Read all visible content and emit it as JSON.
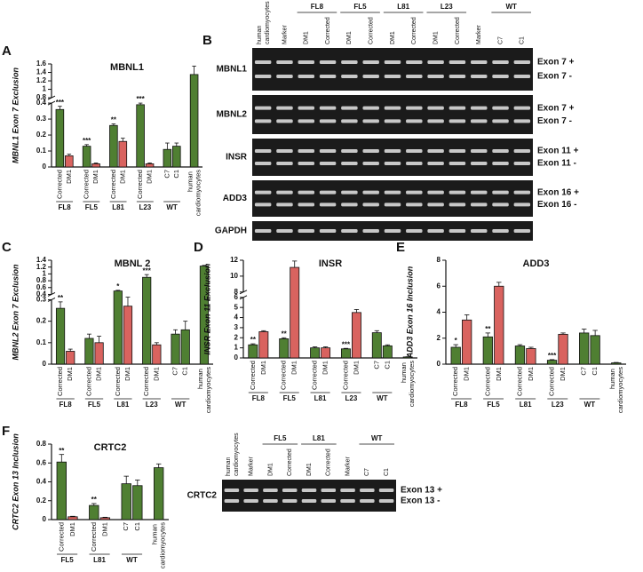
{
  "chart_data": [
    {
      "type": "bar",
      "panel": "A",
      "title": "MBNL1",
      "y_label": "MBNL1 Exon 7 Exclusion",
      "ylim": [
        0,
        1.6
      ],
      "ybreak": [
        0.4,
        0.8
      ],
      "yticks": [
        0,
        0.1,
        0.2,
        0.3,
        0.4,
        0.8,
        1,
        1.2,
        1.4,
        1.6
      ],
      "groups": [
        {
          "label": "FL8",
          "categories": [
            "Corrected",
            "DM1"
          ],
          "colors": [
            "#4f7f32",
            "#d9635f"
          ],
          "values": [
            0.36,
            0.07
          ],
          "errors": [
            0.02,
            0.01
          ],
          "stars": [
            "***",
            null
          ]
        },
        {
          "label": "FL5",
          "categories": [
            "Corrected",
            "DM1"
          ],
          "colors": [
            "#4f7f32",
            "#d9635f"
          ],
          "values": [
            0.13,
            0.02
          ],
          "errors": [
            0.01,
            0.005
          ],
          "stars": [
            "***",
            null
          ]
        },
        {
          "label": "L81",
          "categories": [
            "Corrected",
            "DM1"
          ],
          "colors": [
            "#4f7f32",
            "#d9635f"
          ],
          "values": [
            0.26,
            0.16
          ],
          "errors": [
            0.01,
            0.02
          ],
          "stars": [
            "**",
            null
          ]
        },
        {
          "label": "L23",
          "categories": [
            "Corrected",
            "DM1"
          ],
          "colors": [
            "#4f7f32",
            "#d9635f"
          ],
          "values": [
            0.39,
            0.02
          ],
          "errors": [
            0.01,
            0.005
          ],
          "stars": [
            "***",
            null
          ]
        },
        {
          "label": "WT",
          "categories": [
            "C7",
            "C1"
          ],
          "colors": [
            "#4f7f32",
            "#4f7f32"
          ],
          "values": [
            0.11,
            0.13
          ],
          "errors": [
            0.04,
            0.02
          ],
          "stars": [
            null,
            null
          ]
        },
        {
          "label": null,
          "categories": [
            "human cardiomyocytes"
          ],
          "colors": [
            "#4f7f32"
          ],
          "values": [
            1.35
          ],
          "errors": [
            0.2
          ],
          "stars": [
            null
          ]
        }
      ]
    },
    {
      "type": "bar",
      "panel": "C",
      "title": "MBNL 2",
      "y_label": "MBNL2 Exon 7 Exclusion",
      "ylim": [
        0,
        1.4
      ],
      "ybreak": [
        0.3,
        0.4
      ],
      "yticks": [
        0,
        0.1,
        0.2,
        0.3,
        0.4,
        0.6,
        0.8,
        1,
        1.2,
        1.4
      ],
      "groups": [
        {
          "label": "FL8",
          "categories": [
            "Corrected",
            "DM1"
          ],
          "colors": [
            "#4f7f32",
            "#d9635f"
          ],
          "values": [
            0.26,
            0.06
          ],
          "errors": [
            0.03,
            0.01
          ],
          "stars": [
            "**",
            null
          ]
        },
        {
          "label": "FL5",
          "categories": [
            "Corrected",
            "DM1"
          ],
          "colors": [
            "#4f7f32",
            "#d9635f"
          ],
          "values": [
            0.12,
            0.1
          ],
          "errors": [
            0.02,
            0.03
          ],
          "stars": [
            null,
            null
          ]
        },
        {
          "label": "L81",
          "categories": [
            "Corrected",
            "DM1"
          ],
          "colors": [
            "#4f7f32",
            "#d9635f"
          ],
          "values": [
            0.5,
            0.27
          ],
          "errors": [
            0.02,
            0.05
          ],
          "stars": [
            "*",
            null
          ]
        },
        {
          "label": "L23",
          "categories": [
            "Corrected",
            "DM1"
          ],
          "colors": [
            "#4f7f32",
            "#d9635f"
          ],
          "values": [
            0.9,
            0.09
          ],
          "errors": [
            0.08,
            0.01
          ],
          "stars": [
            "***",
            null
          ]
        },
        {
          "label": "WT",
          "categories": [
            "C7",
            "C1"
          ],
          "colors": [
            "#4f7f32",
            "#4f7f32"
          ],
          "values": [
            0.14,
            0.16
          ],
          "errors": [
            0.02,
            0.04
          ],
          "stars": [
            null,
            null
          ]
        },
        {
          "label": null,
          "categories": [
            "human cardiomyocytes"
          ],
          "colors": [
            "#4f7f32"
          ],
          "values": [
            1.23
          ],
          "errors": [
            0.02
          ],
          "stars": [
            null
          ]
        }
      ]
    },
    {
      "type": "bar",
      "panel": "D",
      "title": "INSR",
      "y_label": "INSR Exon 11 Exclusion",
      "ylim": [
        0,
        12
      ],
      "ybreak": [
        6,
        8
      ],
      "yticks": [
        0,
        1,
        2,
        3,
        4,
        5,
        6,
        8,
        10,
        12
      ],
      "groups": [
        {
          "label": "FL8",
          "categories": [
            "Corrected",
            "DM1"
          ],
          "colors": [
            "#4f7f32",
            "#d9635f"
          ],
          "values": [
            1.3,
            2.6
          ],
          "errors": [
            0.1,
            0.1
          ],
          "stars": [
            "**",
            null
          ]
        },
        {
          "label": "FL5",
          "categories": [
            "Corrected",
            "DM1"
          ],
          "colors": [
            "#4f7f32",
            "#d9635f"
          ],
          "values": [
            1.9,
            11.1
          ],
          "errors": [
            0.1,
            0.8
          ],
          "stars": [
            "**",
            null
          ]
        },
        {
          "label": "L81",
          "categories": [
            "Corrected",
            "DM1"
          ],
          "colors": [
            "#4f7f32",
            "#d9635f"
          ],
          "values": [
            1,
            1
          ],
          "errors": [
            0.1,
            0.1
          ],
          "stars": [
            null,
            null
          ]
        },
        {
          "label": "L23",
          "categories": [
            "Corrected",
            "DM1"
          ],
          "colors": [
            "#4f7f32",
            "#d9635f"
          ],
          "values": [
            0.9,
            4.5
          ],
          "errors": [
            0.05,
            0.3
          ],
          "stars": [
            "***",
            null
          ]
        },
        {
          "label": "WT",
          "categories": [
            "C7",
            "C1"
          ],
          "colors": [
            "#4f7f32",
            "#4f7f32"
          ],
          "values": [
            2.5,
            1.2
          ],
          "errors": [
            0.2,
            0.1
          ],
          "stars": [
            null,
            null
          ]
        },
        {
          "label": null,
          "categories": [
            "human cardiomyocytes"
          ],
          "colors": [
            "#4f7f32"
          ],
          "values": [
            0.1
          ],
          "errors": [
            0.02
          ],
          "stars": [
            null
          ]
        }
      ]
    },
    {
      "type": "bar",
      "panel": "E",
      "title": "ADD3",
      "y_label": "ADD3 Exon 16 Inclusion",
      "ylim": [
        0,
        8
      ],
      "yticks": [
        0,
        2,
        4,
        6,
        8
      ],
      "groups": [
        {
          "label": "FL8",
          "categories": [
            "Corrected",
            "DM1"
          ],
          "colors": [
            "#4f7f32",
            "#d9635f"
          ],
          "values": [
            1.3,
            3.4
          ],
          "errors": [
            0.2,
            0.4
          ],
          "stars": [
            "*",
            null
          ]
        },
        {
          "label": "FL5",
          "categories": [
            "Corrected",
            "DM1"
          ],
          "colors": [
            "#4f7f32",
            "#d9635f"
          ],
          "values": [
            2.1,
            6
          ],
          "errors": [
            0.3,
            0.3
          ],
          "stars": [
            "**",
            null
          ]
        },
        {
          "label": "L81",
          "categories": [
            "Corrected",
            "DM1"
          ],
          "colors": [
            "#4f7f32",
            "#d9635f"
          ],
          "values": [
            1.4,
            1.2
          ],
          "errors": [
            0.1,
            0.1
          ],
          "stars": [
            null,
            null
          ]
        },
        {
          "label": "L23",
          "categories": [
            "Corrected",
            "DM1"
          ],
          "colors": [
            "#4f7f32",
            "#d9635f"
          ],
          "values": [
            0.3,
            2.3
          ],
          "errors": [
            0.05,
            0.1
          ],
          "stars": [
            "***",
            null
          ]
        },
        {
          "label": "WT",
          "categories": [
            "C7",
            "C1"
          ],
          "colors": [
            "#4f7f32",
            "#4f7f32"
          ],
          "values": [
            2.4,
            2.2
          ],
          "errors": [
            0.3,
            0.4
          ],
          "stars": [
            null,
            null
          ]
        },
        {
          "label": null,
          "categories": [
            "human cardiomyocytes"
          ],
          "colors": [
            "#4f7f32"
          ],
          "values": [
            0.1
          ],
          "errors": [
            0.03
          ],
          "stars": [
            null
          ]
        }
      ]
    },
    {
      "type": "bar",
      "panel": "F",
      "title": "CRTC2",
      "y_label": "CRTC2 Exon 13 Inclusion",
      "ylim": [
        0,
        0.8
      ],
      "yticks": [
        0,
        0.2,
        0.4,
        0.6,
        0.8
      ],
      "groups": [
        {
          "label": "FL5",
          "categories": [
            "Corrected",
            "DM1"
          ],
          "colors": [
            "#4f7f32",
            "#d9635f"
          ],
          "values": [
            0.61,
            0.03
          ],
          "errors": [
            0.08,
            0.005
          ],
          "stars": [
            "**",
            null
          ]
        },
        {
          "label": "L81",
          "categories": [
            "Corrected",
            "DM1"
          ],
          "colors": [
            "#4f7f32",
            "#d9635f"
          ],
          "values": [
            0.15,
            0.02
          ],
          "errors": [
            0.02,
            0.005
          ],
          "stars": [
            "**",
            null
          ]
        },
        {
          "label": "WT",
          "categories": [
            "C7",
            "C1"
          ],
          "colors": [
            "#4f7f32",
            "#4f7f32"
          ],
          "values": [
            0.38,
            0.36
          ],
          "errors": [
            0.08,
            0.06
          ],
          "stars": [
            null,
            null
          ]
        },
        {
          "label": null,
          "categories": [
            "human cardiomyocytes"
          ],
          "colors": [
            "#4f7f32"
          ],
          "values": [
            0.55
          ],
          "errors": [
            0.04
          ],
          "stars": [
            null
          ]
        }
      ]
    }
  ],
  "gels": [
    {
      "panel": "B",
      "columns": [
        {
          "lanes": [
            "human cardiomyocytes"
          ]
        },
        {
          "lanes": [
            "Marker"
          ]
        },
        {
          "group": "FL8",
          "lanes": [
            "DM1",
            "Corrected"
          ]
        },
        {
          "group": "FL5",
          "lanes": [
            "DM1",
            "Corrected"
          ]
        },
        {
          "group": "L81",
          "lanes": [
            "DM1",
            "Corrected"
          ]
        },
        {
          "group": "L23",
          "lanes": [
            "DM1",
            "Corrected"
          ]
        },
        {
          "lanes": [
            "Marker"
          ]
        },
        {
          "group": "WT",
          "lanes": [
            "C7",
            "C1"
          ]
        }
      ],
      "rows": [
        {
          "gene": "MBNL1",
          "bands": [
            "Exon 7 +",
            "Exon 7 -"
          ]
        },
        {
          "gene": "MBNL2",
          "bands": [
            "Exon 7 +",
            "Exon 7 -"
          ]
        },
        {
          "gene": "INSR",
          "bands": [
            "Exon 11 +",
            "Exon 11 -"
          ]
        },
        {
          "gene": "ADD3",
          "bands": [
            "Exon 16 +",
            "Exon 16 -"
          ]
        },
        {
          "gene": "GAPDH",
          "bands": []
        }
      ]
    },
    {
      "columns": [
        {
          "lanes": [
            "human cardiomyocytes"
          ]
        },
        {
          "lanes": [
            "Marker"
          ]
        },
        {
          "group": "FL5",
          "lanes": [
            "DM1",
            "Corrected"
          ]
        },
        {
          "group": "L81",
          "lanes": [
            "DM1",
            "Corrected"
          ]
        },
        {
          "lanes": [
            "Marker"
          ]
        },
        {
          "group": "WT",
          "lanes": [
            "C7",
            "C1"
          ]
        }
      ],
      "rows": [
        {
          "gene": "CRTC2",
          "bands": [
            "Exon 13 +",
            "Exon 13 -"
          ]
        }
      ]
    }
  ]
}
